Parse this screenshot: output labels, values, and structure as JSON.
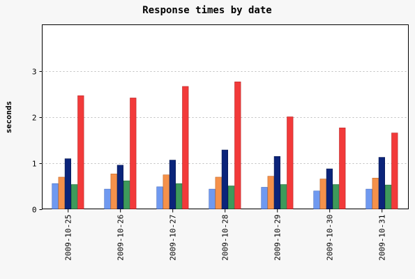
{
  "chart_data": {
    "type": "bar",
    "title": "Response times by date",
    "xlabel": "",
    "ylabel": "seconds",
    "ylim": [
      0,
      4
    ],
    "yticks": [
      0,
      1,
      2,
      3
    ],
    "grid": true,
    "categories": [
      "2009-10-25",
      "2009-10-26",
      "2009-10-27",
      "2009-10-28",
      "2009-10-29",
      "2009-10-30",
      "2009-10-31"
    ],
    "series": [
      {
        "color": "#6f99f0",
        "stroke": "#4a6fc2",
        "values": [
          0.55,
          0.43,
          0.48,
          0.43,
          0.47,
          0.39,
          0.43
        ]
      },
      {
        "color": "#f5914a",
        "stroke": "#c26a2b",
        "values": [
          0.69,
          0.76,
          0.74,
          0.69,
          0.71,
          0.65,
          0.67
        ]
      },
      {
        "color": "#0b247a",
        "stroke": "#061650",
        "values": [
          1.09,
          0.95,
          1.06,
          1.28,
          1.14,
          0.87,
          1.12
        ]
      },
      {
        "color": "#3e9a5b",
        "stroke": "#2a6e40",
        "values": [
          0.53,
          0.61,
          0.55,
          0.5,
          0.53,
          0.53,
          0.52
        ]
      },
      {
        "color": "#f23a3a",
        "stroke": "#b82525",
        "values": [
          2.46,
          2.41,
          2.66,
          2.76,
          2.0,
          1.76,
          1.65
        ]
      }
    ]
  }
}
